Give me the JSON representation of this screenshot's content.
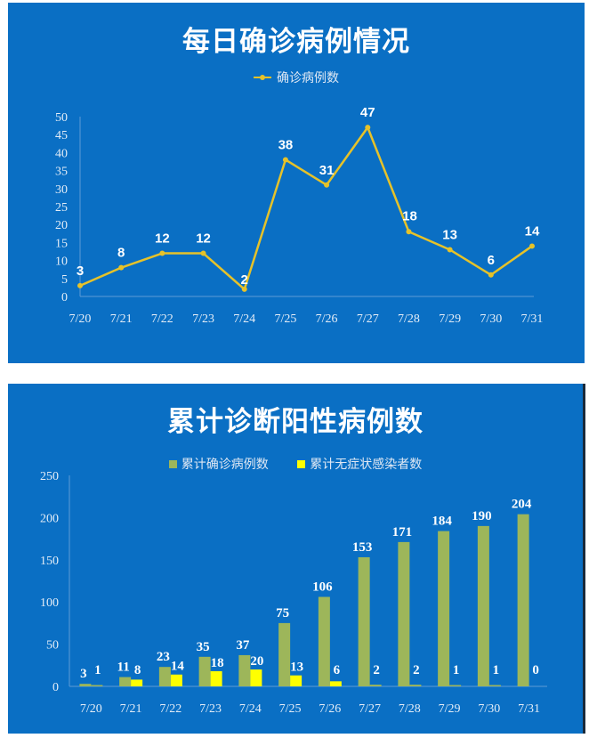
{
  "colors": {
    "panel_bg": "#0a6fc4",
    "line": "#e6c229",
    "bar_confirmed": "#9db65a",
    "bar_asymptomatic": "#ffff00",
    "text": "#ffffff"
  },
  "chart_data": [
    {
      "type": "line",
      "title": "每日确诊病例情况",
      "legend": [
        "确诊病例数"
      ],
      "legend_position": "top",
      "categories": [
        "7/20",
        "7/21",
        "7/22",
        "7/23",
        "7/24",
        "7/25",
        "7/26",
        "7/27",
        "7/28",
        "7/29",
        "7/30",
        "7/31"
      ],
      "series": [
        {
          "name": "确诊病例数",
          "values": [
            3,
            8,
            12,
            12,
            2,
            38,
            31,
            47,
            18,
            13,
            6,
            14
          ]
        }
      ],
      "yticks": [
        0,
        5,
        10,
        15,
        20,
        25,
        30,
        35,
        40,
        45,
        50
      ],
      "ylim": [
        0,
        50
      ],
      "xlabel": "",
      "ylabel": "",
      "grid": false,
      "data_labels": true
    },
    {
      "type": "bar",
      "title": "累计诊断阳性病例数",
      "legend": [
        "累计确诊病例数",
        "累计无症状感染者数"
      ],
      "legend_position": "top",
      "categories": [
        "7/20",
        "7/21",
        "7/22",
        "7/23",
        "7/24",
        "7/25",
        "7/26",
        "7/27",
        "7/28",
        "7/29",
        "7/30",
        "7/31"
      ],
      "series": [
        {
          "name": "累计确诊病例数",
          "values": [
            3,
            11,
            23,
            35,
            37,
            75,
            106,
            153,
            171,
            184,
            190,
            204
          ]
        },
        {
          "name": "累计无症状感染者数",
          "values": [
            1,
            8,
            14,
            18,
            20,
            13,
            6,
            2,
            2,
            1,
            1,
            0
          ]
        }
      ],
      "yticks": [
        0,
        50,
        100,
        150,
        200,
        250
      ],
      "ylim": [
        0,
        250
      ],
      "xlabel": "",
      "ylabel": "",
      "grid": false,
      "data_labels": true
    }
  ]
}
